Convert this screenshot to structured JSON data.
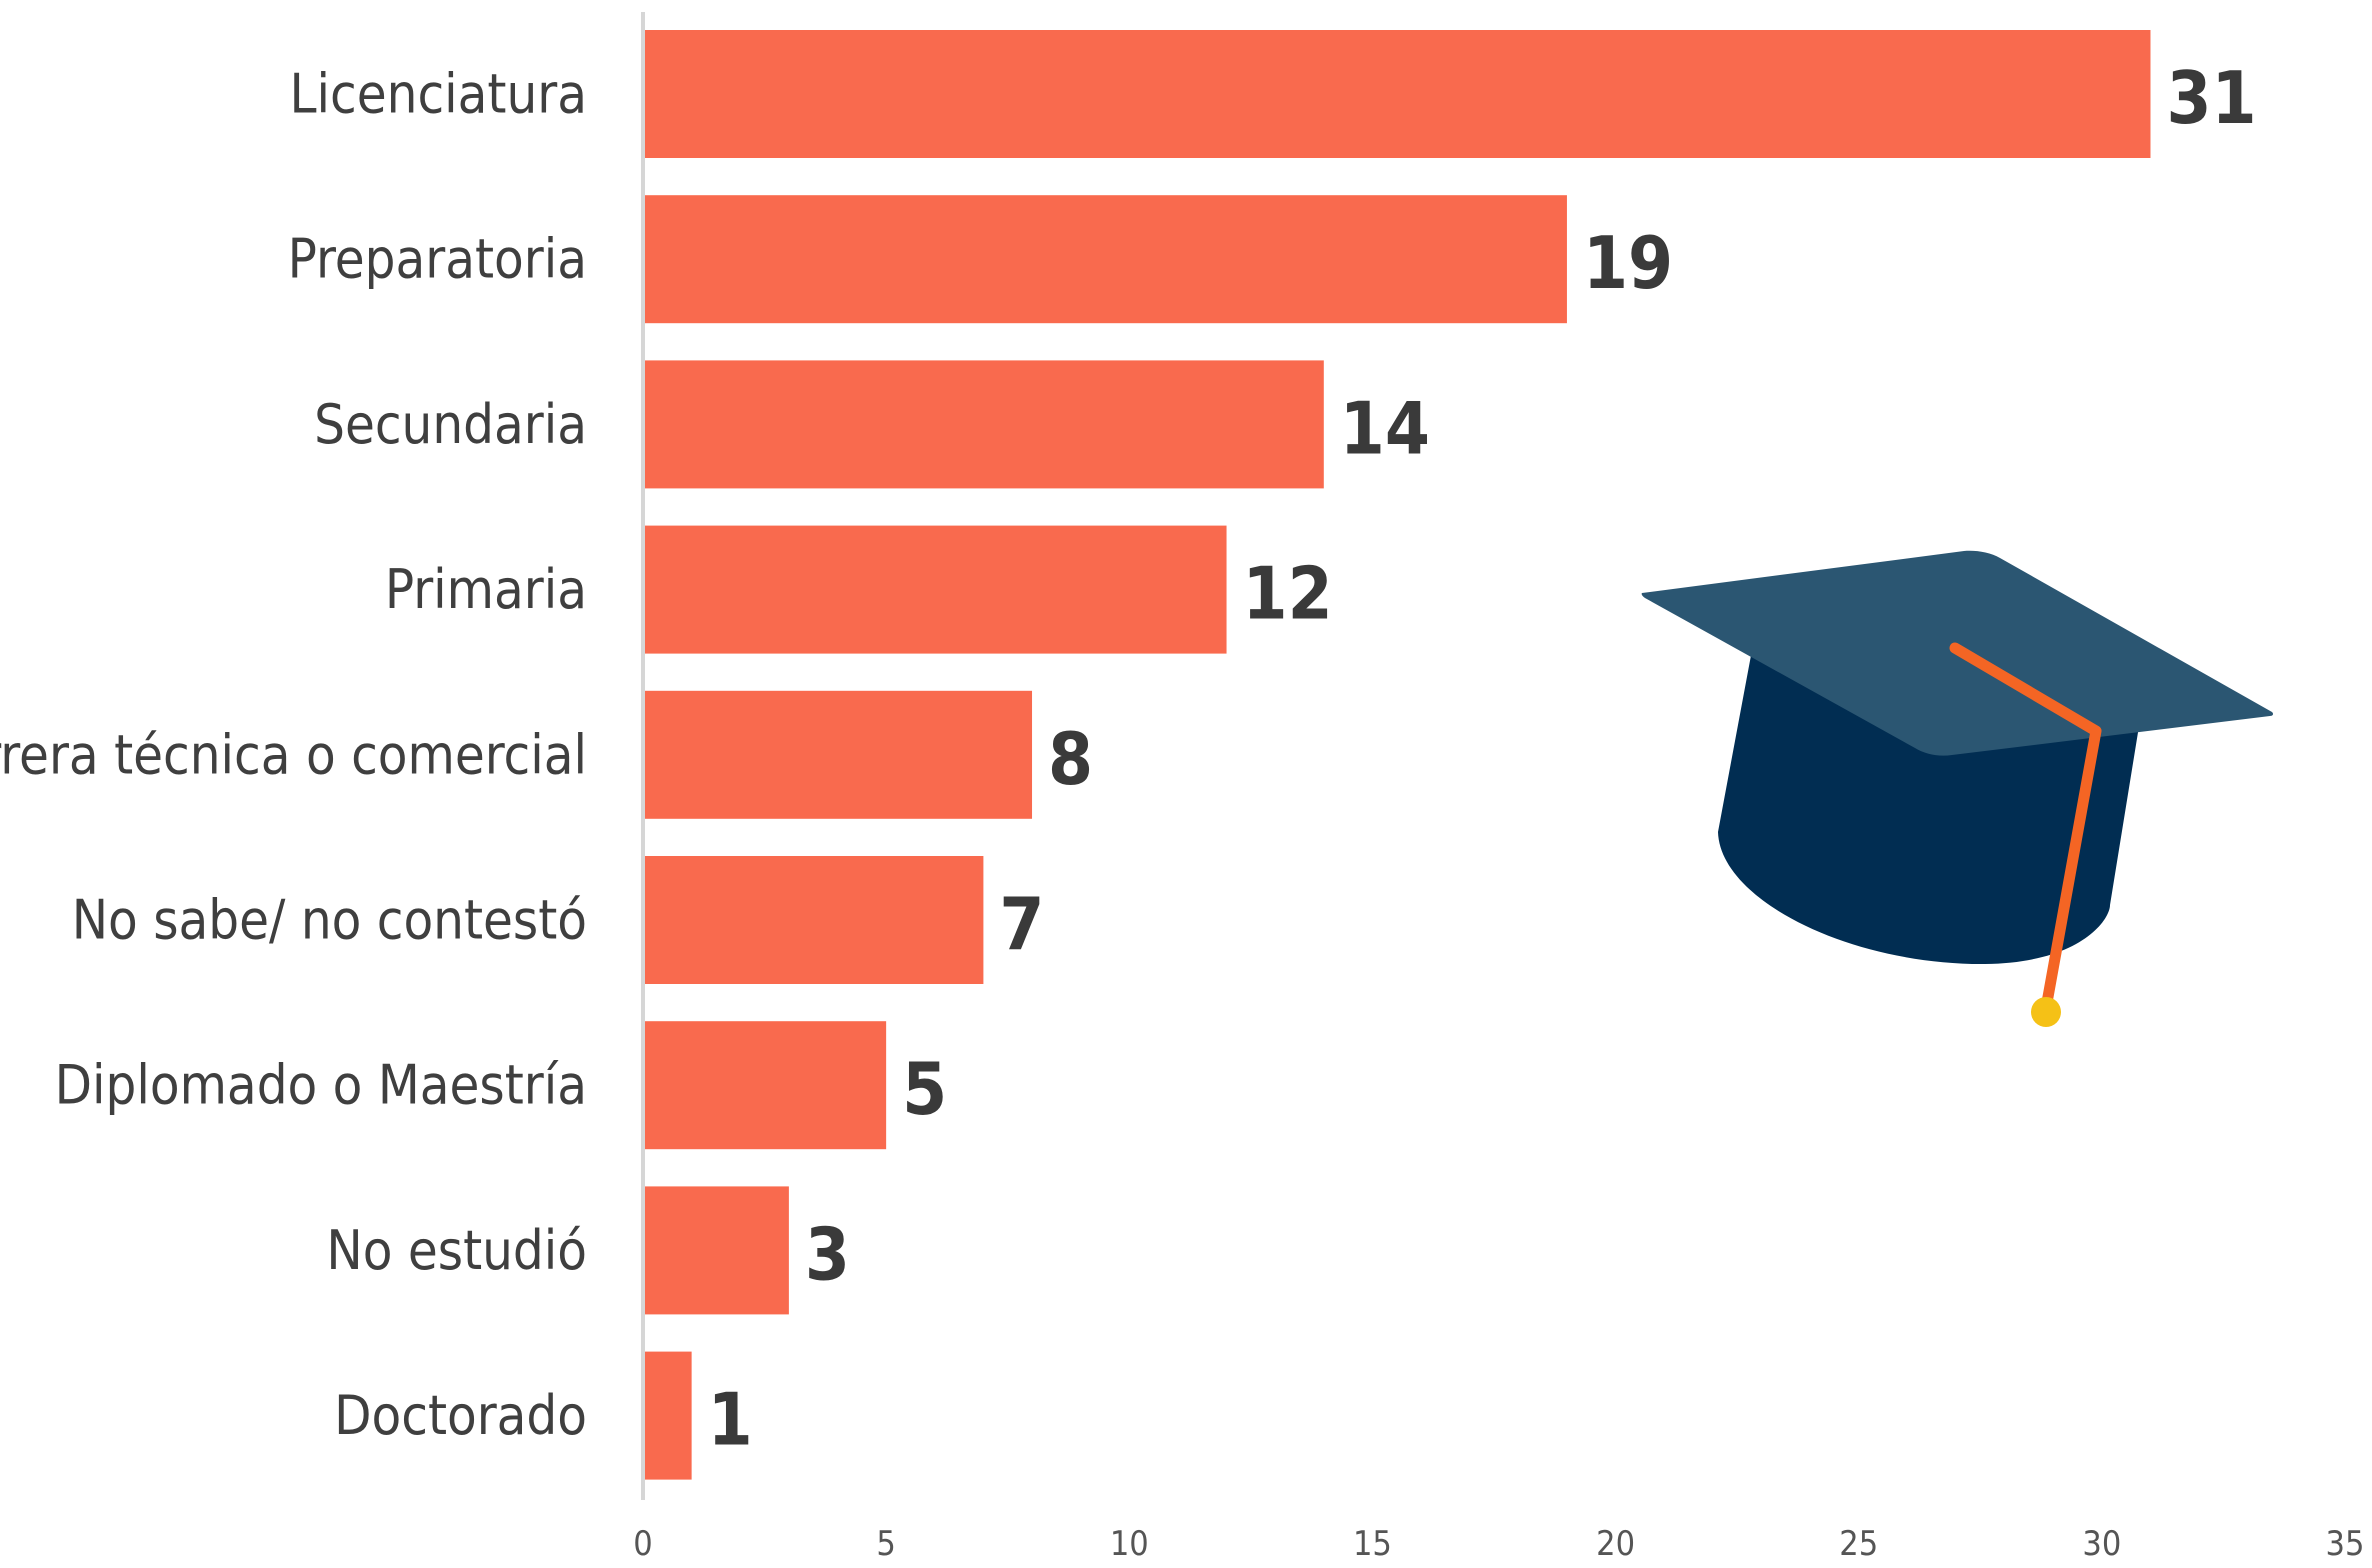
{
  "chart_data": {
    "type": "bar",
    "orientation": "horizontal",
    "categories": [
      "Licenciatura",
      "Preparatoria",
      "Secundaria",
      "Primaria",
      "Carrera técnica o comercial",
      "No sabe/ no contestó",
      "Diplomado o Maestría",
      "No estudió",
      "Doctorado"
    ],
    "values": [
      31,
      19,
      14,
      12,
      8,
      7,
      5,
      3,
      1
    ],
    "data_labels": [
      "31",
      "19",
      "14",
      "12",
      "8",
      "7",
      "5",
      "3",
      "1"
    ],
    "xlim": [
      0,
      35
    ],
    "xticks": [
      0,
      5,
      10,
      15,
      20,
      25,
      30,
      35
    ],
    "xtick_labels": [
      "0",
      "5",
      "10",
      "15",
      "20",
      "25",
      "30",
      "35"
    ],
    "grid": false,
    "legend": "none",
    "bar_color": "#f96a4e"
  },
  "decoration": {
    "icon": "graduation-cap-icon",
    "cap_top_color": "#2b5672",
    "cap_base_color": "#012d52",
    "tassel_color": "#f46524",
    "tassel_end_color": "#f5c116"
  }
}
